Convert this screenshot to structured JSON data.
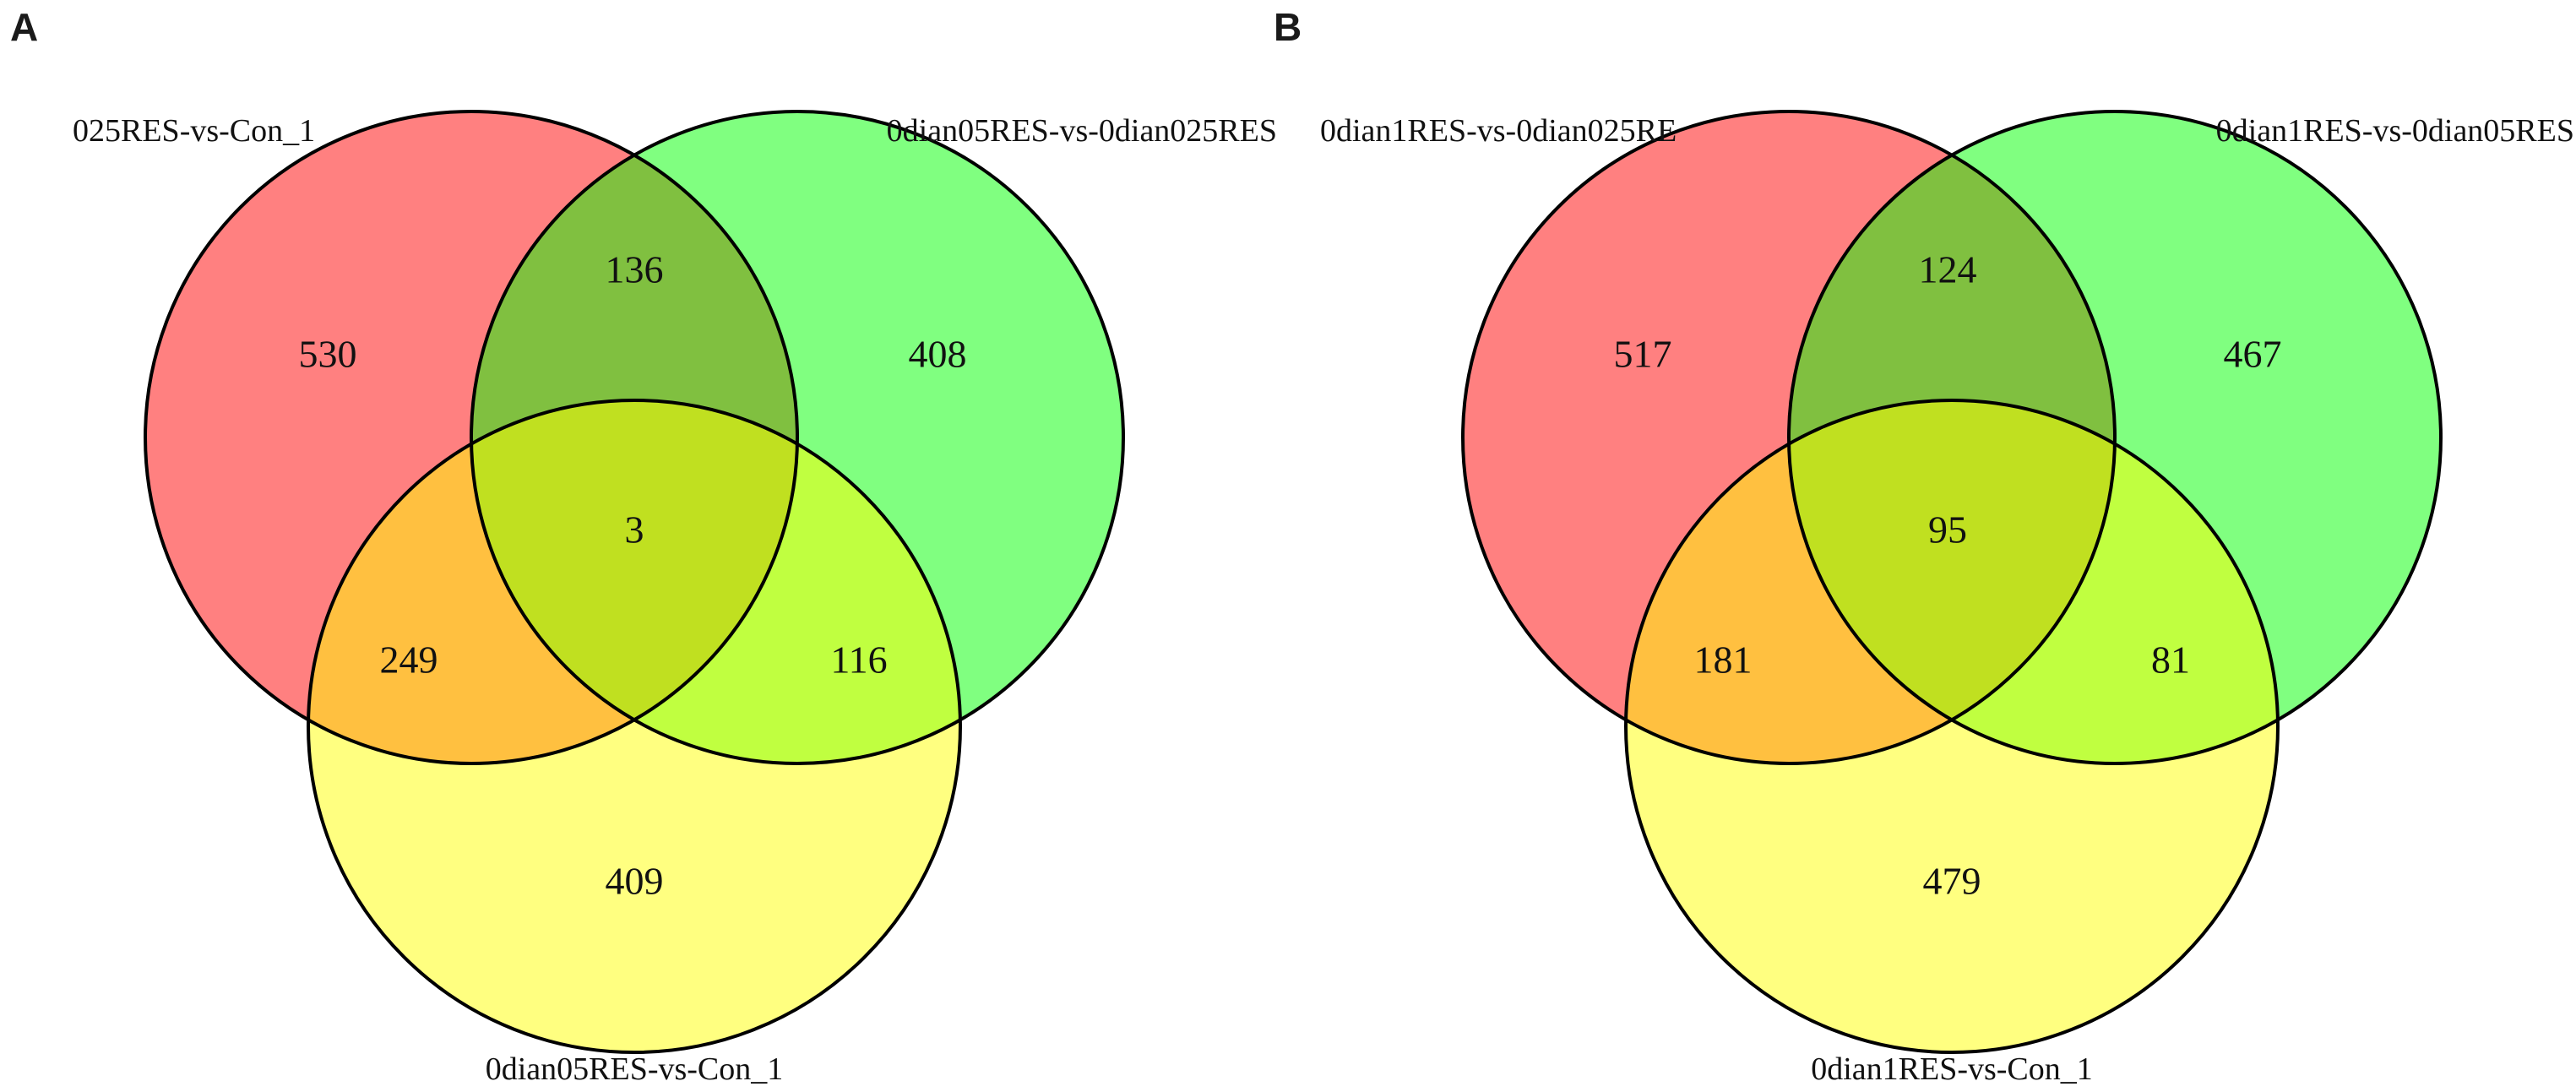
{
  "panels": [
    {
      "letter": "A",
      "sets": {
        "red": {
          "label": "025RES-vs-Con_1",
          "color": "#ff8080"
        },
        "green": {
          "label": "0dian05RES-vs-0dian025RES",
          "color": "#80ff80"
        },
        "yellow": {
          "label": "0dian05RES-vs-Con_1",
          "color": "#ffff80"
        }
      },
      "regions": {
        "red_only": "530",
        "green_only": "408",
        "yellow_only": "409",
        "red_green": "136",
        "red_yellow": "249",
        "green_yellow": "116",
        "all_three": "3"
      }
    },
    {
      "letter": "B",
      "sets": {
        "red": {
          "label": "0dian1RES-vs-0dian025RE",
          "color": "#ff8080"
        },
        "green": {
          "label": "0dian1RES-vs-0dian05RES",
          "color": "#80ff80"
        },
        "yellow": {
          "label": "0dian1RES-vs-Con_1",
          "color": "#ffff80"
        }
      },
      "regions": {
        "red_only": "517",
        "green_only": "467",
        "yellow_only": "479",
        "red_green": "124",
        "red_yellow": "181",
        "green_yellow": "81",
        "all_three": "95"
      }
    }
  ],
  "overlap_colors": {
    "red_green": "#80c040",
    "red_yellow": "#ffc040",
    "green_yellow": "#c0ff40",
    "all_three": "#c0e020"
  }
}
